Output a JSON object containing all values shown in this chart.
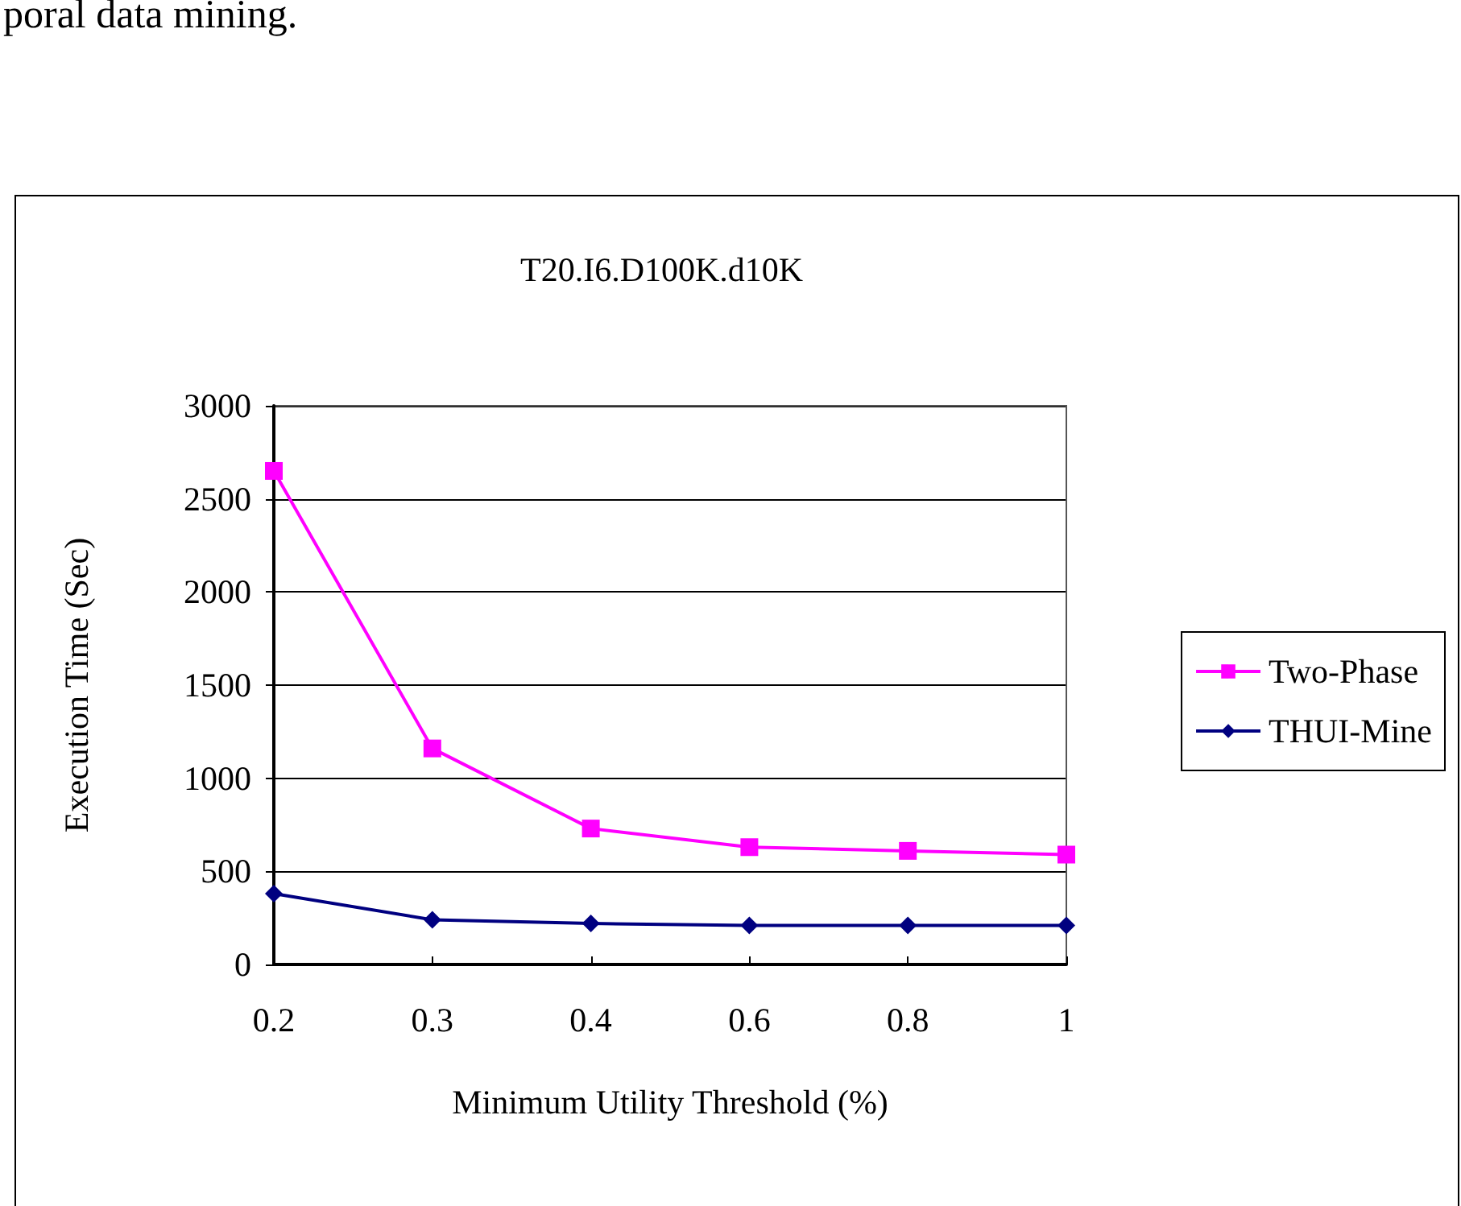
{
  "chart_data": {
    "type": "line",
    "title": "T20.I6.D100K.d10K",
    "xlabel": "Minimum Utility Threshold (%)",
    "ylabel": "Execution Time (Sec)",
    "annotations": [
      "poral data mining."
    ],
    "categories": [
      "0.2",
      "0.3",
      "0.4",
      "0.6",
      "0.8",
      "1"
    ],
    "series": [
      {
        "name": "Two-Phase",
        "color": "#ff00ff",
        "marker": "square",
        "values": [
          2650,
          1160,
          730,
          630,
          610,
          590
        ]
      },
      {
        "name": "THUI-Mine",
        "color": "#000080",
        "marker": "diamond",
        "values": [
          380,
          240,
          220,
          210,
          210,
          210
        ]
      }
    ],
    "ylim": [
      0,
      3000
    ],
    "yticks": [
      0,
      500,
      1000,
      1500,
      2000,
      2500,
      3000
    ],
    "grid": "y",
    "legend": "right"
  }
}
